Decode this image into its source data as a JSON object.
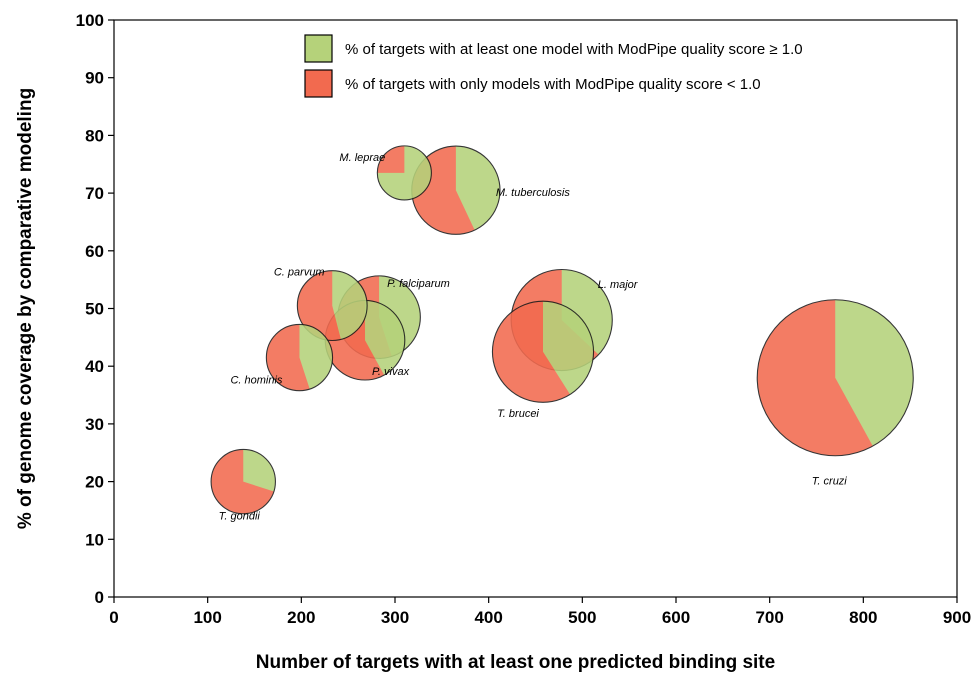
{
  "chart_data": {
    "type": "bubble-pie",
    "xlabel": "Number of targets with at least one predicted binding site",
    "ylabel": "% of genome coverage by comparative modeling",
    "xlim": [
      0,
      900
    ],
    "ylim": [
      0,
      100
    ],
    "xticks": [
      0,
      100,
      200,
      300,
      400,
      500,
      600,
      700,
      800,
      900
    ],
    "yticks": [
      0,
      10,
      20,
      30,
      40,
      50,
      60,
      70,
      80,
      90,
      100
    ],
    "grid": false,
    "legend_position": "top-right",
    "series": [
      {
        "name": "% of targets with at least one model with ModPipe quality score ≥ 1.0",
        "color": "#b5d27a"
      },
      {
        "name": "% of targets with only models with ModPipe quality score < 1.0",
        "color": "#f26a4f"
      }
    ],
    "points": [
      {
        "label": "M. leprae",
        "x": 310,
        "y": 73.5,
        "size": 12,
        "good_fraction": 0.75
      },
      {
        "label": "M. tuberculosis",
        "x": 365,
        "y": 70.5,
        "size": 32,
        "good_fraction": 0.43
      },
      {
        "label": "C. parvum",
        "x": 233,
        "y": 50.5,
        "size": 20,
        "good_fraction": 0.46
      },
      {
        "label": "P. falciparum",
        "x": 283,
        "y": 48.5,
        "size": 28,
        "good_fraction": 0.45
      },
      {
        "label": "L. major",
        "x": 478,
        "y": 48,
        "size": 42,
        "good_fraction": 0.37
      },
      {
        "label": "T. brucei",
        "x": 458,
        "y": 42.5,
        "size": 42,
        "good_fraction": 0.41
      },
      {
        "label": "P. vivax",
        "x": 268,
        "y": 44.5,
        "size": 26,
        "good_fraction": 0.42
      },
      {
        "label": "C. hominis",
        "x": 198,
        "y": 41.5,
        "size": 18,
        "good_fraction": 0.45
      },
      {
        "label": "T. gondii",
        "x": 138,
        "y": 20,
        "size": 17,
        "good_fraction": 0.3
      },
      {
        "label": "T. cruzi",
        "x": 770,
        "y": 38,
        "size": 100,
        "good_fraction": 0.42
      }
    ]
  }
}
